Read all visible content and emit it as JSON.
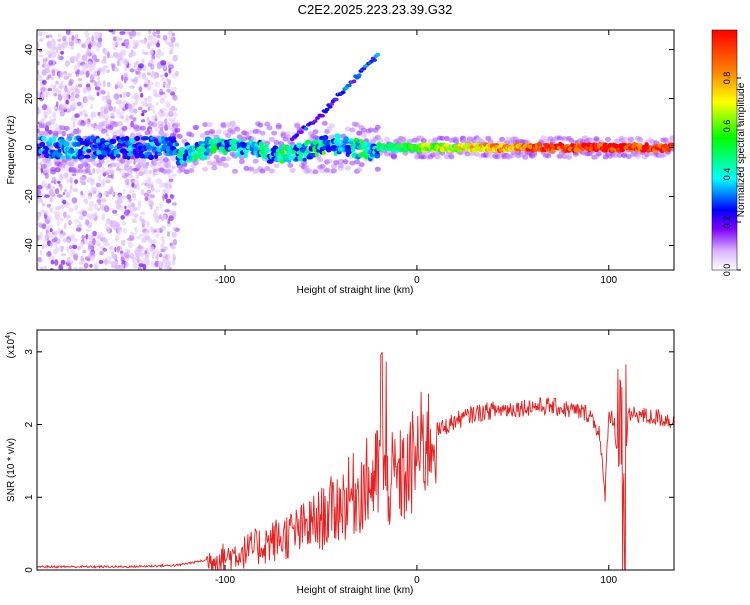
{
  "page_title": "C2E2.2025.223.23.39.G32",
  "chart_data": [
    {
      "type": "heatmap",
      "xlabel": "Height of straight line (km)",
      "ylabel": "Frequency (Hz)",
      "xlim": [
        -198,
        134
      ],
      "ylim": [
        -50,
        48
      ],
      "xticks": [
        -100,
        0,
        100
      ],
      "yticks": [
        -40,
        -20,
        0,
        20,
        40
      ],
      "grid": false,
      "colorbar": {
        "label": "Normalized spectral amplitude",
        "ticks": [
          "0.0",
          "0.2",
          "0.4",
          "0.6",
          "0.8"
        ],
        "range": [
          0,
          1
        ],
        "colors": [
          "#ffffff",
          "#d9b3ff",
          "#8000ff",
          "#0000ff",
          "#00ffff",
          "#00ff00",
          "#ffff00",
          "#ff8000",
          "#ff0000"
        ]
      },
      "features": [
        {
          "name_hint": "main band",
          "x_range": [
            -198,
            134
          ],
          "freq": 0
        },
        {
          "name_hint": "rising branch",
          "points": [
            [
              -65,
              4
            ],
            [
              -50,
              13
            ],
            [
              -40,
              22
            ],
            [
              -30,
              30
            ],
            [
              -20,
              38
            ]
          ]
        },
        {
          "name_hint": "noise region",
          "x_range": [
            -198,
            -125
          ],
          "freq_range": [
            -50,
            48
          ]
        }
      ]
    },
    {
      "type": "line",
      "xlabel": "Height of straight line (km)",
      "ylabel": "SNR (10 * v/v)",
      "y_multiplier": "(x10",
      "y_multiplier_exp": "4",
      "xlim": [
        -198,
        134
      ],
      "ylim": [
        0,
        3.3
      ],
      "xticks": [
        -100,
        0,
        100
      ],
      "yticks": [
        0,
        1,
        2,
        3
      ],
      "grid": false,
      "series_color": "#e82020",
      "series": [
        {
          "x": [
            -198,
            -150,
            -125,
            -110,
            -100,
            -90,
            -80,
            -70,
            -60,
            -50,
            -40,
            -30,
            -25,
            -20,
            -18,
            -15,
            -10,
            -5,
            0,
            10,
            20,
            30,
            40,
            50,
            60,
            70,
            80,
            90,
            95,
            98,
            100,
            103,
            105,
            108,
            110,
            115,
            120,
            125,
            134
          ],
          "y": [
            0.03,
            0.03,
            0.05,
            0.12,
            0.18,
            0.25,
            0.35,
            0.45,
            0.55,
            0.7,
            0.9,
            1.1,
            1.2,
            1.3,
            1.4,
            1.2,
            1.25,
            1.3,
            1.6,
            1.9,
            2.05,
            2.15,
            2.2,
            2.22,
            2.25,
            2.25,
            2.2,
            2.15,
            1.9,
            1.0,
            2.2,
            2.0,
            1.5,
            1.2,
            2.1,
            2.15,
            2.1,
            2.1,
            2.05
          ]
        }
      ]
    }
  ]
}
